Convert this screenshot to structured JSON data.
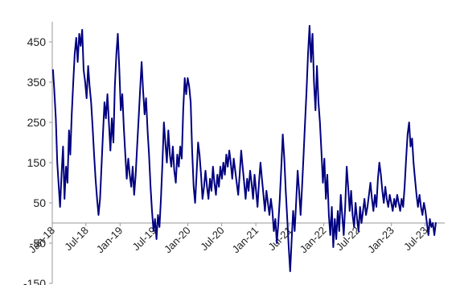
{
  "chart_data": {
    "type": "line",
    "title": "",
    "xlabel": "",
    "ylabel": "",
    "ylim": [
      -150,
      500
    ],
    "xlim": [
      "2018-01-01",
      "2023-10-15"
    ],
    "grid": false,
    "legend": "none",
    "y_ticks": [
      -150,
      -50,
      50,
      150,
      250,
      350,
      450
    ],
    "x_ticks": [
      {
        "date": "2018-01-01",
        "label": "Jan-18"
      },
      {
        "date": "2018-07-01",
        "label": "Jul-18"
      },
      {
        "date": "2019-01-01",
        "label": "Jan-19"
      },
      {
        "date": "2019-07-01",
        "label": "Jul-19"
      },
      {
        "date": "2020-01-01",
        "label": "Jan-20"
      },
      {
        "date": "2020-07-01",
        "label": "Jul-20"
      },
      {
        "date": "2021-01-01",
        "label": "Jan-21"
      },
      {
        "date": "2021-07-01",
        "label": "Jul-21"
      },
      {
        "date": "2022-01-01",
        "label": "Jan-22"
      },
      {
        "date": "2022-07-01",
        "label": "Jul-22"
      },
      {
        "date": "2023-01-01",
        "label": "Jan-23"
      },
      {
        "date": "2023-07-01",
        "label": "Jul-23"
      }
    ],
    "line_color": "#000080",
    "axis_color": "#999999",
    "series": [
      {
        "points": [
          [
            "2018-01-05",
            380
          ],
          [
            "2018-01-12",
            330
          ],
          [
            "2018-01-20",
            260
          ],
          [
            "2018-01-28",
            150
          ],
          [
            "2018-02-05",
            90
          ],
          [
            "2018-02-12",
            40
          ],
          [
            "2018-02-20",
            120
          ],
          [
            "2018-02-28",
            190
          ],
          [
            "2018-03-08",
            60
          ],
          [
            "2018-03-16",
            140
          ],
          [
            "2018-03-24",
            100
          ],
          [
            "2018-04-01",
            230
          ],
          [
            "2018-04-08",
            170
          ],
          [
            "2018-04-16",
            270
          ],
          [
            "2018-04-24",
            350
          ],
          [
            "2018-05-02",
            420
          ],
          [
            "2018-05-10",
            460
          ],
          [
            "2018-05-18",
            400
          ],
          [
            "2018-05-26",
            470
          ],
          [
            "2018-06-03",
            440
          ],
          [
            "2018-06-11",
            480
          ],
          [
            "2018-06-19",
            380
          ],
          [
            "2018-06-27",
            350
          ],
          [
            "2018-07-05",
            310
          ],
          [
            "2018-07-13",
            390
          ],
          [
            "2018-07-21",
            340
          ],
          [
            "2018-07-29",
            300
          ],
          [
            "2018-08-06",
            240
          ],
          [
            "2018-08-14",
            170
          ],
          [
            "2018-08-22",
            110
          ],
          [
            "2018-08-30",
            60
          ],
          [
            "2018-09-07",
            20
          ],
          [
            "2018-09-15",
            60
          ],
          [
            "2018-09-23",
            140
          ],
          [
            "2018-10-01",
            220
          ],
          [
            "2018-10-09",
            300
          ],
          [
            "2018-10-17",
            260
          ],
          [
            "2018-10-25",
            320
          ],
          [
            "2018-11-02",
            250
          ],
          [
            "2018-11-10",
            180
          ],
          [
            "2018-11-18",
            260
          ],
          [
            "2018-11-26",
            200
          ],
          [
            "2018-12-04",
            340
          ],
          [
            "2018-12-12",
            420
          ],
          [
            "2018-12-20",
            470
          ],
          [
            "2018-12-28",
            380
          ],
          [
            "2019-01-05",
            280
          ],
          [
            "2019-01-13",
            320
          ],
          [
            "2019-01-21",
            240
          ],
          [
            "2019-01-29",
            170
          ],
          [
            "2019-02-06",
            110
          ],
          [
            "2019-02-14",
            160
          ],
          [
            "2019-02-22",
            120
          ],
          [
            "2019-03-02",
            90
          ],
          [
            "2019-03-10",
            140
          ],
          [
            "2019-03-18",
            70
          ],
          [
            "2019-03-26",
            120
          ],
          [
            "2019-04-03",
            190
          ],
          [
            "2019-04-11",
            260
          ],
          [
            "2019-04-19",
            330
          ],
          [
            "2019-04-27",
            400
          ],
          [
            "2019-05-05",
            330
          ],
          [
            "2019-05-13",
            270
          ],
          [
            "2019-05-21",
            310
          ],
          [
            "2019-05-29",
            230
          ],
          [
            "2019-06-06",
            170
          ],
          [
            "2019-06-14",
            90
          ],
          [
            "2019-06-22",
            30
          ],
          [
            "2019-06-30",
            -20
          ],
          [
            "2019-07-08",
            10
          ],
          [
            "2019-07-16",
            -40
          ],
          [
            "2019-07-24",
            20
          ],
          [
            "2019-08-01",
            -10
          ],
          [
            "2019-08-09",
            60
          ],
          [
            "2019-08-17",
            150
          ],
          [
            "2019-08-25",
            250
          ],
          [
            "2019-09-02",
            200
          ],
          [
            "2019-09-10",
            150
          ],
          [
            "2019-09-18",
            230
          ],
          [
            "2019-09-26",
            170
          ],
          [
            "2019-10-04",
            140
          ],
          [
            "2019-10-12",
            190
          ],
          [
            "2019-10-20",
            130
          ],
          [
            "2019-10-28",
            100
          ],
          [
            "2019-11-05",
            170
          ],
          [
            "2019-11-13",
            140
          ],
          [
            "2019-11-21",
            190
          ],
          [
            "2019-11-29",
            160
          ],
          [
            "2019-12-07",
            280
          ],
          [
            "2019-12-15",
            360
          ],
          [
            "2019-12-23",
            320
          ],
          [
            "2019-12-31",
            360
          ],
          [
            "2020-01-08",
            340
          ],
          [
            "2020-01-16",
            300
          ],
          [
            "2020-01-24",
            180
          ],
          [
            "2020-02-01",
            90
          ],
          [
            "2020-02-09",
            50
          ],
          [
            "2020-02-17",
            120
          ],
          [
            "2020-02-25",
            200
          ],
          [
            "2020-03-04",
            170
          ],
          [
            "2020-03-12",
            120
          ],
          [
            "2020-03-20",
            60
          ],
          [
            "2020-03-28",
            90
          ],
          [
            "2020-04-05",
            130
          ],
          [
            "2020-04-13",
            90
          ],
          [
            "2020-04-21",
            60
          ],
          [
            "2020-04-29",
            110
          ],
          [
            "2020-05-07",
            80
          ],
          [
            "2020-05-15",
            140
          ],
          [
            "2020-05-23",
            100
          ],
          [
            "2020-05-31",
            70
          ],
          [
            "2020-06-08",
            120
          ],
          [
            "2020-06-16",
            90
          ],
          [
            "2020-06-24",
            140
          ],
          [
            "2020-07-02",
            110
          ],
          [
            "2020-07-10",
            150
          ],
          [
            "2020-07-18",
            120
          ],
          [
            "2020-07-26",
            170
          ],
          [
            "2020-08-03",
            140
          ],
          [
            "2020-08-11",
            180
          ],
          [
            "2020-08-19",
            150
          ],
          [
            "2020-08-27",
            110
          ],
          [
            "2020-09-04",
            160
          ],
          [
            "2020-09-12",
            130
          ],
          [
            "2020-09-20",
            100
          ],
          [
            "2020-09-28",
            70
          ],
          [
            "2020-10-06",
            120
          ],
          [
            "2020-10-14",
            180
          ],
          [
            "2020-10-22",
            140
          ],
          [
            "2020-10-30",
            100
          ],
          [
            "2020-11-07",
            60
          ],
          [
            "2020-11-15",
            110
          ],
          [
            "2020-11-23",
            80
          ],
          [
            "2020-12-01",
            130
          ],
          [
            "2020-12-09",
            100
          ],
          [
            "2020-12-17",
            60
          ],
          [
            "2020-12-25",
            120
          ],
          [
            "2021-01-02",
            80
          ],
          [
            "2021-01-10",
            40
          ],
          [
            "2021-01-18",
            100
          ],
          [
            "2021-01-26",
            150
          ],
          [
            "2021-02-03",
            110
          ],
          [
            "2021-02-11",
            70
          ],
          [
            "2021-02-19",
            30
          ],
          [
            "2021-02-27",
            80
          ],
          [
            "2021-03-07",
            50
          ],
          [
            "2021-03-15",
            20
          ],
          [
            "2021-03-23",
            60
          ],
          [
            "2021-03-31",
            30
          ],
          [
            "2021-04-08",
            -20
          ],
          [
            "2021-04-16",
            10
          ],
          [
            "2021-04-24",
            -50
          ],
          [
            "2021-05-02",
            0
          ],
          [
            "2021-05-10",
            60
          ],
          [
            "2021-05-18",
            140
          ],
          [
            "2021-05-26",
            220
          ],
          [
            "2021-06-03",
            160
          ],
          [
            "2021-06-11",
            80
          ],
          [
            "2021-06-19",
            10
          ],
          [
            "2021-06-27",
            -60
          ],
          [
            "2021-07-05",
            -120
          ],
          [
            "2021-07-13",
            -40
          ],
          [
            "2021-07-21",
            30
          ],
          [
            "2021-07-29",
            -20
          ],
          [
            "2021-08-06",
            50
          ],
          [
            "2021-08-14",
            130
          ],
          [
            "2021-08-22",
            80
          ],
          [
            "2021-08-30",
            20
          ],
          [
            "2021-09-07",
            90
          ],
          [
            "2021-09-15",
            170
          ],
          [
            "2021-09-23",
            250
          ],
          [
            "2021-10-01",
            330
          ],
          [
            "2021-10-09",
            420
          ],
          [
            "2021-10-17",
            490
          ],
          [
            "2021-10-25",
            400
          ],
          [
            "2021-11-02",
            470
          ],
          [
            "2021-11-10",
            350
          ],
          [
            "2021-11-18",
            280
          ],
          [
            "2021-11-26",
            390
          ],
          [
            "2021-12-04",
            300
          ],
          [
            "2021-12-12",
            250
          ],
          [
            "2021-12-20",
            180
          ],
          [
            "2021-12-28",
            100
          ],
          [
            "2022-01-05",
            160
          ],
          [
            "2022-01-13",
            60
          ],
          [
            "2022-01-21",
            120
          ],
          [
            "2022-01-29",
            20
          ],
          [
            "2022-02-06",
            -30
          ],
          [
            "2022-02-14",
            40
          ],
          [
            "2022-02-22",
            -60
          ],
          [
            "2022-03-02",
            10
          ],
          [
            "2022-03-10",
            -40
          ],
          [
            "2022-03-18",
            30
          ],
          [
            "2022-03-26",
            -20
          ],
          [
            "2022-04-03",
            70
          ],
          [
            "2022-04-11",
            20
          ],
          [
            "2022-04-19",
            -30
          ],
          [
            "2022-04-27",
            40
          ],
          [
            "2022-05-05",
            140
          ],
          [
            "2022-05-13",
            90
          ],
          [
            "2022-05-21",
            30
          ],
          [
            "2022-05-29",
            80
          ],
          [
            "2022-06-06",
            20
          ],
          [
            "2022-06-14",
            -10
          ],
          [
            "2022-06-22",
            50
          ],
          [
            "2022-06-30",
            10
          ],
          [
            "2022-07-08",
            -20
          ],
          [
            "2022-07-16",
            40
          ],
          [
            "2022-07-24",
            0
          ],
          [
            "2022-08-01",
            30
          ],
          [
            "2022-08-09",
            60
          ],
          [
            "2022-08-17",
            20
          ],
          [
            "2022-08-25",
            40
          ],
          [
            "2022-09-02",
            70
          ],
          [
            "2022-09-10",
            100
          ],
          [
            "2022-09-18",
            60
          ],
          [
            "2022-09-26",
            30
          ],
          [
            "2022-10-04",
            70
          ],
          [
            "2022-10-12",
            40
          ],
          [
            "2022-10-20",
            110
          ],
          [
            "2022-10-28",
            150
          ],
          [
            "2022-11-05",
            120
          ],
          [
            "2022-11-13",
            80
          ],
          [
            "2022-11-21",
            50
          ],
          [
            "2022-11-29",
            90
          ],
          [
            "2022-12-07",
            60
          ],
          [
            "2022-12-15",
            40
          ],
          [
            "2022-12-23",
            70
          ],
          [
            "2022-12-31",
            50
          ],
          [
            "2023-01-08",
            30
          ],
          [
            "2023-01-16",
            60
          ],
          [
            "2023-01-24",
            40
          ],
          [
            "2023-02-01",
            70
          ],
          [
            "2023-02-09",
            50
          ],
          [
            "2023-02-17",
            30
          ],
          [
            "2023-02-25",
            60
          ],
          [
            "2023-03-05",
            40
          ],
          [
            "2023-03-13",
            90
          ],
          [
            "2023-03-21",
            160
          ],
          [
            "2023-03-29",
            220
          ],
          [
            "2023-04-06",
            250
          ],
          [
            "2023-04-14",
            190
          ],
          [
            "2023-04-22",
            210
          ],
          [
            "2023-04-30",
            150
          ],
          [
            "2023-05-08",
            110
          ],
          [
            "2023-05-16",
            70
          ],
          [
            "2023-05-24",
            40
          ],
          [
            "2023-06-01",
            70
          ],
          [
            "2023-06-09",
            40
          ],
          [
            "2023-06-17",
            20
          ],
          [
            "2023-06-25",
            50
          ],
          [
            "2023-07-03",
            30
          ],
          [
            "2023-07-11",
            0
          ],
          [
            "2023-07-19",
            -30
          ],
          [
            "2023-07-27",
            10
          ],
          [
            "2023-08-04",
            -10
          ],
          [
            "2023-08-12",
            0
          ],
          [
            "2023-08-20",
            -30
          ],
          [
            "2023-08-28",
            0
          ]
        ]
      }
    ]
  }
}
